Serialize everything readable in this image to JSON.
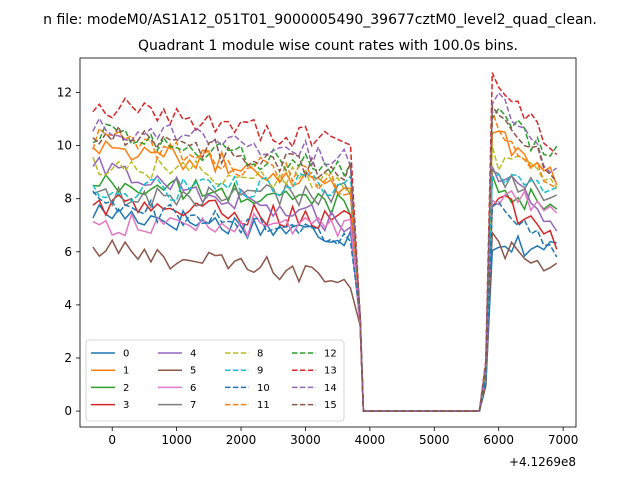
{
  "figure": {
    "suptitle": "n file: modeM0/AS1A12_051T01_9000005490_39677cztM0_level2_quad_clean.",
    "title": "Quadrant 1 module wise count rates with 100.0s bins.",
    "x_offset_label": "+4.1269e8"
  },
  "chart_data": {
    "type": "line",
    "title": "Quadrant 1 module wise count rates with 100.0s bins.",
    "xlabel": "",
    "ylabel": "",
    "x_offset": 412690000,
    "xlim": [
      -500,
      7200
    ],
    "ylim": [
      -0.6,
      13.3
    ],
    "x_ticks": [
      0,
      1000,
      2000,
      3000,
      4000,
      5000,
      6000,
      7000
    ],
    "x_tick_labels": [
      "0",
      "1000",
      "2000",
      "3000",
      "4000",
      "5000",
      "6000",
      "7000"
    ],
    "y_ticks": [
      0,
      2,
      4,
      6,
      8,
      10,
      12
    ],
    "y_tick_labels": [
      "0",
      "2",
      "4",
      "6",
      "8",
      "10",
      "12"
    ],
    "grid": false,
    "legend_position": "lower-left",
    "legend_columns": 4,
    "active_segments": [
      [
        -300,
        3750
      ],
      [
        5900,
        6900
      ]
    ],
    "drop_from": 3850,
    "gap": [
      3900,
      5700
    ],
    "series": [
      {
        "name": "0",
        "color": "#1f77b4",
        "dash": false,
        "segments": [
          [
            7.5,
            6.6
          ],
          [
            6.4,
            6.1
          ]
        ],
        "zero": 0
      },
      {
        "name": "1",
        "color": "#ff7f0e",
        "dash": false,
        "segments": [
          [
            10.1,
            8.5
          ],
          [
            10.5,
            8.8
          ]
        ],
        "zero": 0
      },
      {
        "name": "2",
        "color": "#2ca02c",
        "dash": false,
        "segments": [
          [
            8.6,
            7.8
          ],
          [
            8.6,
            7.5
          ]
        ],
        "zero": 0
      },
      {
        "name": "3",
        "color": "#d62728",
        "dash": false,
        "segments": [
          [
            7.8,
            7.2
          ],
          [
            8.0,
            6.5
          ]
        ],
        "zero": 0
      },
      {
        "name": "4",
        "color": "#9467bd",
        "dash": false,
        "segments": [
          [
            9.2,
            7.0
          ],
          [
            9.2,
            6.8
          ]
        ],
        "zero": 0
      },
      {
        "name": "5",
        "color": "#8c564b",
        "dash": false,
        "segments": [
          [
            6.1,
            5.0
          ],
          [
            6.4,
            5.2
          ]
        ],
        "zero": 0
      },
      {
        "name": "6",
        "color": "#e377c2",
        "dash": false,
        "segments": [
          [
            7.0,
            7.0
          ],
          [
            8.2,
            7.6
          ]
        ],
        "zero": 0
      },
      {
        "name": "7",
        "color": "#7f7f7f",
        "dash": false,
        "segments": [
          [
            8.0,
            8.2
          ],
          [
            9.0,
            7.9
          ]
        ],
        "zero": 0
      },
      {
        "name": "8",
        "color": "#bcbd22",
        "dash": true,
        "segments": [
          [
            9.3,
            8.6
          ],
          [
            9.6,
            8.7
          ]
        ],
        "zero": 0
      },
      {
        "name": "9",
        "color": "#17becf",
        "dash": true,
        "segments": [
          [
            8.2,
            8.6
          ],
          [
            9.0,
            8.3
          ]
        ],
        "zero": 0
      },
      {
        "name": "10",
        "color": "#1f77b4",
        "dash": true,
        "segments": [
          [
            7.9,
            6.4
          ],
          [
            7.6,
            6.2
          ]
        ],
        "zero": 0
      },
      {
        "name": "11",
        "color": "#ff7f0e",
        "dash": true,
        "segments": [
          [
            10.3,
            8.5
          ],
          [
            10.9,
            8.4
          ]
        ],
        "zero": 0
      },
      {
        "name": "12",
        "color": "#2ca02c",
        "dash": true,
        "segments": [
          [
            10.5,
            9.0
          ],
          [
            11.2,
            9.6
          ]
        ],
        "zero": 0
      },
      {
        "name": "13",
        "color": "#d62728",
        "dash": true,
        "segments": [
          [
            11.6,
            10.0
          ],
          [
            12.6,
            9.8
          ]
        ],
        "zero": 0
      },
      {
        "name": "14",
        "color": "#9467bd",
        "dash": true,
        "segments": [
          [
            10.8,
            9.5
          ],
          [
            12.0,
            8.9
          ]
        ],
        "zero": 0
      },
      {
        "name": "15",
        "color": "#8c564b",
        "dash": true,
        "segments": [
          [
            10.5,
            9.0
          ],
          [
            11.6,
            8.9
          ]
        ],
        "zero": 0
      }
    ]
  }
}
